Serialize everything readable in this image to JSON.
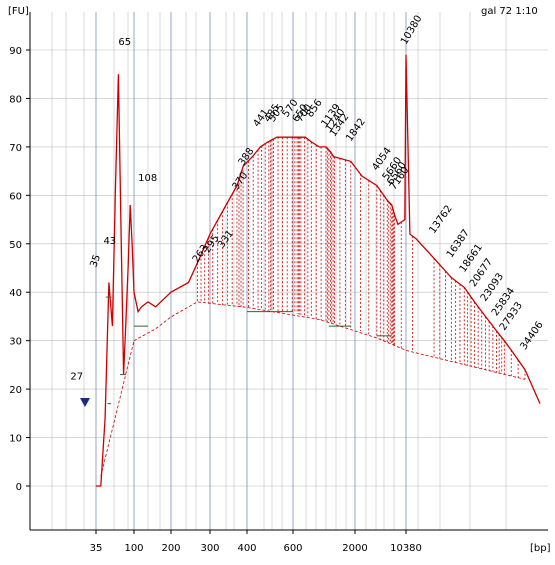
{
  "chart_data": {
    "type": "line",
    "title": "gal 72 1:10",
    "ylabel": "[FU]",
    "xlabel": "[bp]",
    "ylim": [
      -10,
      98
    ],
    "y_ticks": [
      0,
      10,
      20,
      30,
      40,
      50,
      60,
      70,
      80,
      90
    ],
    "x_ticks": [
      "35",
      "100",
      "200",
      "300",
      "400",
      "600",
      "2000",
      "10380"
    ],
    "grid": true,
    "series": [
      {
        "values_note": "",
        "x": [
          35,
          40,
          45,
          50,
          55,
          60,
          65,
          70,
          75,
          80,
          85,
          90,
          95,
          100,
          108,
          115,
          130,
          150,
          200,
          240,
          263,
          300,
          340,
          370,
          388,
          420,
          450,
          480,
          520,
          570,
          650,
          700,
          760,
          860,
          1000,
          1139,
          1240,
          1320,
          1842,
          2500,
          4054,
          5660,
          6560,
          7160,
          8000,
          10000,
          10380,
          10800,
          11500,
          13762,
          16387,
          18661,
          20677,
          23093,
          25834,
          27933,
          30000,
          34406,
          40000
        ],
        "values": [
          0,
          0,
          14,
          42,
          33,
          62,
          85,
          52,
          23,
          34,
          45,
          58,
          50,
          40,
          36,
          37,
          38,
          37,
          40,
          42,
          46,
          52,
          58,
          62,
          66,
          68,
          70,
          71,
          72,
          72,
          72,
          72,
          72,
          71,
          70,
          70,
          69,
          68,
          67,
          64,
          62,
          59,
          58,
          56,
          54,
          55,
          89,
          52,
          51,
          47,
          43,
          41,
          38,
          35,
          32,
          30,
          28,
          24,
          17
        ]
      }
    ],
    "peak_labels": [
      "27",
      "35",
      "43",
      "65",
      "108",
      "263",
      "295",
      "331",
      "370",
      "388",
      "441",
      "485",
      "505",
      "570",
      "650",
      "700",
      "856",
      "1139",
      "1240",
      "1342",
      "1842",
      "4054",
      "5660",
      "6560",
      "7160",
      "10380",
      "13762",
      "16387",
      "18661",
      "20677",
      "23093",
      "25834",
      "27933",
      "34406"
    ]
  },
  "colors": {
    "trace": "#cc0000",
    "grid_minor": "#c0c0c0",
    "grid_major": "#8090b0",
    "baseline_green": "#2a6a2a",
    "marker": "#1a2a80",
    "ladder_label": "#6a2a8a",
    "alignment_label": "#2a8a2a"
  }
}
